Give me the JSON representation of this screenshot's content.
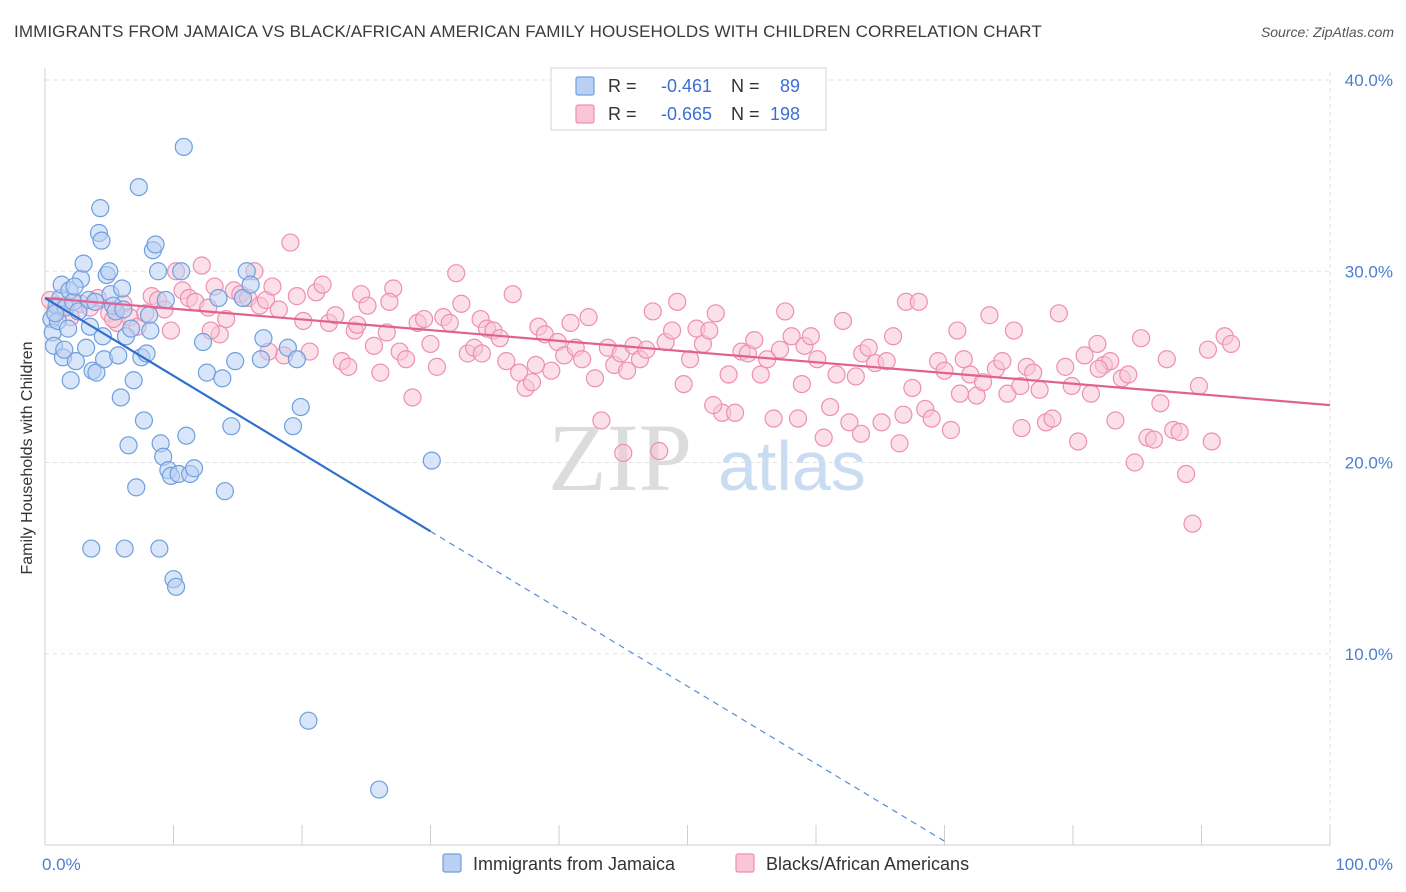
{
  "title": "IMMIGRANTS FROM JAMAICA VS BLACK/AFRICAN AMERICAN FAMILY HOUSEHOLDS WITH CHILDREN CORRELATION CHART",
  "source": "Source: ZipAtlas.com",
  "watermark": {
    "zip": "ZIP",
    "atlas": "atlas"
  },
  "chart_data": {
    "type": "scatter",
    "xlabel": "",
    "ylabel": "Family Households with Children",
    "xlim": [
      0,
      100
    ],
    "ylim": [
      0,
      40
    ],
    "x_ticks": [
      {
        "value": 0,
        "label": "0.0%"
      },
      {
        "value": 100,
        "label": "100.0%"
      }
    ],
    "y_ticks": [
      {
        "value": 10,
        "label": "10.0%"
      },
      {
        "value": 20,
        "label": "20.0%"
      },
      {
        "value": 30,
        "label": "30.0%"
      },
      {
        "value": 40,
        "label": "40.0%"
      }
    ],
    "grid": true,
    "legend_position": "top-center",
    "stats": [
      {
        "r_label": "R =",
        "r_value": "-0.461",
        "n_label": "N =",
        "n_value": "89"
      },
      {
        "r_label": "R =",
        "r_value": "-0.665",
        "n_label": "N =",
        "n_value": "198"
      }
    ],
    "series": [
      {
        "name": "Immigrants from Jamaica",
        "color": "#6f9fe0",
        "fill": "#b9d0f2",
        "line_color": "#2f6fcc",
        "trend": {
          "x0": 0,
          "y0": 28.6,
          "x1": 30,
          "y1": 16.4,
          "dash_to_x": 70,
          "dash_to_y": 0.2
        },
        "points": [
          [
            0.5,
            27.5
          ],
          [
            0.6,
            26.8
          ],
          [
            0.7,
            26.1
          ],
          [
            0.9,
            28.2
          ],
          [
            1.0,
            27.4
          ],
          [
            1.2,
            28.6
          ],
          [
            1.3,
            29.3
          ],
          [
            1.4,
            25.5
          ],
          [
            1.6,
            28.1
          ],
          [
            1.8,
            27.0
          ],
          [
            1.9,
            29.0
          ],
          [
            2.0,
            24.3
          ],
          [
            2.2,
            28.4
          ],
          [
            2.4,
            25.3
          ],
          [
            2.6,
            27.9
          ],
          [
            2.8,
            29.6
          ],
          [
            3.0,
            30.4
          ],
          [
            3.2,
            26.0
          ],
          [
            3.4,
            28.5
          ],
          [
            3.5,
            27.1
          ],
          [
            3.7,
            24.8
          ],
          [
            3.9,
            28.4
          ],
          [
            4.0,
            24.7
          ],
          [
            4.2,
            32.0
          ],
          [
            4.3,
            33.3
          ],
          [
            4.4,
            31.6
          ],
          [
            4.5,
            26.6
          ],
          [
            4.6,
            25.4
          ],
          [
            4.8,
            29.8
          ],
          [
            5.0,
            30.0
          ],
          [
            5.1,
            28.8
          ],
          [
            5.3,
            28.2
          ],
          [
            5.5,
            27.9
          ],
          [
            5.7,
            25.6
          ],
          [
            5.9,
            23.4
          ],
          [
            6.0,
            29.1
          ],
          [
            6.1,
            28.0
          ],
          [
            6.3,
            26.6
          ],
          [
            6.5,
            20.9
          ],
          [
            6.7,
            27.0
          ],
          [
            6.9,
            24.3
          ],
          [
            7.1,
            18.7
          ],
          [
            7.3,
            34.4
          ],
          [
            7.5,
            25.5
          ],
          [
            7.7,
            22.2
          ],
          [
            7.9,
            25.7
          ],
          [
            8.1,
            27.7
          ],
          [
            8.2,
            26.9
          ],
          [
            8.4,
            31.1
          ],
          [
            8.6,
            31.4
          ],
          [
            8.8,
            30.0
          ],
          [
            9.0,
            21.0
          ],
          [
            9.2,
            20.3
          ],
          [
            9.4,
            28.5
          ],
          [
            9.6,
            19.6
          ],
          [
            9.8,
            19.3
          ],
          [
            10.0,
            13.9
          ],
          [
            10.2,
            13.5
          ],
          [
            10.4,
            19.4
          ],
          [
            10.6,
            30.0
          ],
          [
            10.8,
            36.5
          ],
          [
            11.0,
            21.4
          ],
          [
            11.3,
            19.4
          ],
          [
            11.6,
            19.7
          ],
          [
            12.3,
            26.3
          ],
          [
            12.6,
            24.7
          ],
          [
            13.5,
            28.6
          ],
          [
            13.8,
            24.4
          ],
          [
            14.0,
            18.5
          ],
          [
            14.5,
            21.9
          ],
          [
            14.8,
            25.3
          ],
          [
            15.4,
            28.6
          ],
          [
            15.7,
            30.0
          ],
          [
            16.0,
            29.3
          ],
          [
            16.8,
            25.4
          ],
          [
            17.0,
            26.5
          ],
          [
            18.9,
            26.0
          ],
          [
            19.3,
            21.9
          ],
          [
            19.6,
            25.4
          ],
          [
            19.9,
            22.9
          ],
          [
            20.5,
            6.5
          ],
          [
            26.0,
            2.9
          ],
          [
            30.1,
            20.1
          ],
          [
            3.6,
            15.5
          ],
          [
            6.2,
            15.5
          ],
          [
            8.9,
            15.5
          ],
          [
            0.8,
            27.8
          ],
          [
            1.5,
            25.9
          ],
          [
            2.3,
            29.2
          ]
        ]
      },
      {
        "name": "Blacks/African Americans",
        "color": "#ee8fb0",
        "fill": "#f8c6d6",
        "line_color": "#e0628f",
        "trend": {
          "x0": 0,
          "y0": 28.6,
          "x1": 100,
          "y1": 23.0
        },
        "points": [
          [
            0.4,
            28.5
          ],
          [
            0.8,
            27.9
          ],
          [
            1.5,
            28.2
          ],
          [
            2.0,
            27.6
          ],
          [
            2.8,
            28.3
          ],
          [
            3.5,
            28.1
          ],
          [
            4.1,
            28.6
          ],
          [
            5.0,
            27.8
          ],
          [
            5.6,
            27.3
          ],
          [
            6.1,
            28.3
          ],
          [
            6.6,
            27.6
          ],
          [
            7.2,
            27.1
          ],
          [
            7.8,
            27.8
          ],
          [
            8.3,
            28.7
          ],
          [
            8.8,
            28.5
          ],
          [
            9.3,
            28.0
          ],
          [
            9.8,
            26.9
          ],
          [
            10.2,
            30.0
          ],
          [
            10.7,
            29.0
          ],
          [
            11.2,
            28.6
          ],
          [
            11.7,
            28.4
          ],
          [
            12.2,
            30.3
          ],
          [
            12.7,
            28.1
          ],
          [
            13.2,
            29.2
          ],
          [
            13.6,
            26.7
          ],
          [
            14.1,
            27.5
          ],
          [
            14.7,
            29.0
          ],
          [
            15.2,
            28.8
          ],
          [
            15.8,
            28.6
          ],
          [
            16.3,
            30.0
          ],
          [
            16.7,
            28.2
          ],
          [
            17.2,
            28.5
          ],
          [
            17.7,
            29.2
          ],
          [
            18.2,
            28.0
          ],
          [
            18.6,
            25.6
          ],
          [
            19.1,
            31.5
          ],
          [
            19.6,
            28.7
          ],
          [
            20.1,
            27.4
          ],
          [
            20.6,
            25.8
          ],
          [
            21.1,
            28.9
          ],
          [
            21.6,
            29.3
          ],
          [
            22.1,
            27.3
          ],
          [
            22.6,
            27.7
          ],
          [
            23.1,
            25.3
          ],
          [
            23.6,
            25.0
          ],
          [
            24.1,
            26.9
          ],
          [
            24.6,
            28.8
          ],
          [
            25.1,
            28.2
          ],
          [
            25.6,
            26.1
          ],
          [
            26.1,
            24.7
          ],
          [
            26.6,
            26.8
          ],
          [
            27.1,
            29.1
          ],
          [
            27.6,
            25.8
          ],
          [
            28.1,
            25.4
          ],
          [
            28.6,
            23.4
          ],
          [
            29.0,
            27.3
          ],
          [
            29.5,
            27.5
          ],
          [
            30.0,
            26.2
          ],
          [
            30.5,
            25.0
          ],
          [
            31.0,
            27.6
          ],
          [
            31.5,
            27.3
          ],
          [
            32.0,
            29.9
          ],
          [
            32.4,
            28.3
          ],
          [
            32.9,
            25.7
          ],
          [
            33.4,
            26.0
          ],
          [
            33.9,
            27.5
          ],
          [
            34.4,
            27.0
          ],
          [
            34.9,
            26.9
          ],
          [
            35.4,
            26.5
          ],
          [
            35.9,
            25.3
          ],
          [
            36.4,
            28.8
          ],
          [
            36.9,
            24.7
          ],
          [
            37.4,
            23.9
          ],
          [
            37.9,
            24.2
          ],
          [
            38.4,
            27.1
          ],
          [
            38.9,
            26.7
          ],
          [
            39.4,
            24.8
          ],
          [
            39.9,
            26.3
          ],
          [
            40.4,
            25.6
          ],
          [
            40.9,
            27.3
          ],
          [
            41.3,
            26.0
          ],
          [
            41.8,
            25.4
          ],
          [
            42.3,
            27.6
          ],
          [
            42.8,
            24.4
          ],
          [
            43.3,
            22.2
          ],
          [
            43.8,
            26.0
          ],
          [
            44.3,
            25.1
          ],
          [
            44.8,
            25.7
          ],
          [
            45.3,
            24.8
          ],
          [
            45.8,
            26.1
          ],
          [
            46.3,
            25.4
          ],
          [
            46.8,
            25.9
          ],
          [
            47.3,
            27.9
          ],
          [
            47.8,
            20.6
          ],
          [
            48.3,
            26.3
          ],
          [
            48.8,
            26.9
          ],
          [
            49.2,
            28.4
          ],
          [
            49.7,
            24.1
          ],
          [
            50.2,
            25.4
          ],
          [
            50.7,
            27.0
          ],
          [
            51.2,
            26.2
          ],
          [
            51.7,
            26.9
          ],
          [
            52.2,
            27.8
          ],
          [
            52.7,
            22.6
          ],
          [
            53.2,
            24.6
          ],
          [
            53.7,
            22.6
          ],
          [
            54.2,
            25.8
          ],
          [
            54.7,
            25.7
          ],
          [
            55.2,
            26.4
          ],
          [
            55.7,
            24.6
          ],
          [
            56.2,
            25.4
          ],
          [
            56.7,
            22.3
          ],
          [
            57.2,
            25.9
          ],
          [
            57.6,
            27.9
          ],
          [
            58.1,
            26.6
          ],
          [
            58.6,
            22.3
          ],
          [
            59.1,
            26.1
          ],
          [
            59.6,
            26.6
          ],
          [
            60.1,
            25.4
          ],
          [
            60.6,
            21.3
          ],
          [
            61.1,
            22.9
          ],
          [
            61.6,
            24.6
          ],
          [
            62.1,
            27.4
          ],
          [
            62.6,
            22.1
          ],
          [
            63.1,
            24.5
          ],
          [
            63.6,
            25.7
          ],
          [
            64.1,
            26.0
          ],
          [
            64.6,
            25.2
          ],
          [
            65.1,
            22.1
          ],
          [
            65.5,
            25.3
          ],
          [
            66.0,
            26.6
          ],
          [
            66.5,
            21.0
          ],
          [
            67.0,
            28.4
          ],
          [
            67.5,
            23.9
          ],
          [
            68.0,
            28.4
          ],
          [
            68.5,
            22.8
          ],
          [
            69.0,
            22.3
          ],
          [
            69.5,
            25.3
          ],
          [
            70.0,
            24.8
          ],
          [
            70.5,
            21.7
          ],
          [
            71.0,
            26.9
          ],
          [
            71.5,
            25.4
          ],
          [
            72.0,
            24.6
          ],
          [
            72.5,
            23.5
          ],
          [
            73.0,
            24.2
          ],
          [
            73.5,
            27.7
          ],
          [
            74.0,
            24.9
          ],
          [
            74.5,
            25.3
          ],
          [
            74.9,
            23.6
          ],
          [
            75.4,
            26.9
          ],
          [
            75.9,
            24.0
          ],
          [
            76.4,
            25.0
          ],
          [
            76.9,
            24.7
          ],
          [
            77.4,
            23.8
          ],
          [
            77.9,
            22.1
          ],
          [
            78.4,
            22.3
          ],
          [
            78.9,
            27.8
          ],
          [
            79.4,
            25.0
          ],
          [
            79.9,
            24.0
          ],
          [
            80.4,
            21.1
          ],
          [
            80.9,
            25.6
          ],
          [
            81.4,
            23.6
          ],
          [
            81.9,
            26.2
          ],
          [
            82.4,
            25.1
          ],
          [
            82.9,
            25.3
          ],
          [
            83.3,
            22.2
          ],
          [
            83.8,
            24.4
          ],
          [
            84.3,
            24.6
          ],
          [
            84.8,
            20.0
          ],
          [
            85.3,
            26.5
          ],
          [
            85.8,
            21.3
          ],
          [
            86.3,
            21.2
          ],
          [
            86.8,
            23.1
          ],
          [
            87.3,
            25.4
          ],
          [
            87.8,
            21.7
          ],
          [
            88.3,
            21.6
          ],
          [
            88.8,
            19.4
          ],
          [
            89.3,
            16.8
          ],
          [
            89.8,
            24.0
          ],
          [
            90.8,
            21.1
          ],
          [
            91.8,
            26.6
          ],
          [
            92.3,
            26.2
          ],
          [
            17.4,
            25.8
          ],
          [
            24.3,
            27.2
          ],
          [
            34.0,
            25.7
          ],
          [
            45.0,
            20.5
          ],
          [
            63.5,
            21.5
          ],
          [
            71.2,
            23.6
          ],
          [
            82.0,
            24.9
          ],
          [
            90.5,
            25.9
          ],
          [
            5.3,
            27.5
          ],
          [
            12.9,
            26.9
          ],
          [
            26.8,
            28.4
          ],
          [
            38.2,
            25.1
          ],
          [
            52.0,
            23.0
          ],
          [
            58.9,
            24.1
          ],
          [
            66.8,
            22.5
          ],
          [
            76.0,
            21.8
          ]
        ]
      }
    ]
  }
}
